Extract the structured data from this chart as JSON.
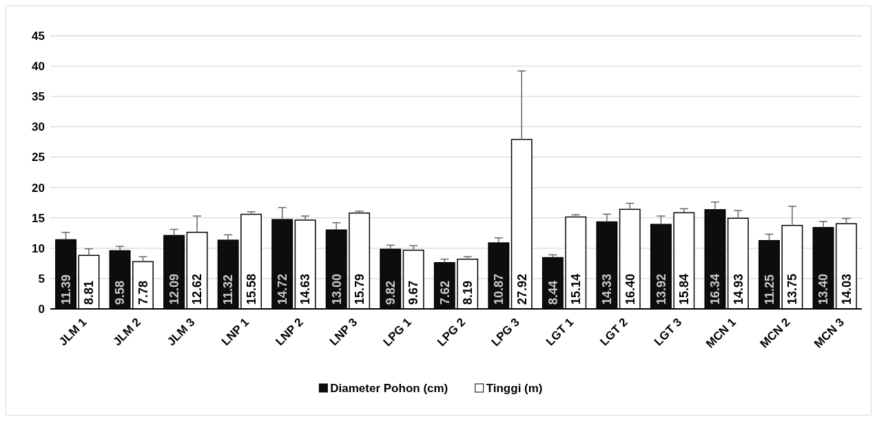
{
  "chart_data": {
    "type": "bar",
    "categories": [
      "JLM 1",
      "JLM 2",
      "JLM 3",
      "LNP 1",
      "LNP 2",
      "LNP 3",
      "LPG 1",
      "LPG 2",
      "LPG 3",
      "LGT 1",
      "LGT 2",
      "LGT 3",
      "MCN 1",
      "MCN 2",
      "MCN 3"
    ],
    "series": [
      {
        "name": "Diameter Pohon (cm)",
        "color": "#0d0d0d",
        "values": [
          11.39,
          9.58,
          12.09,
          11.32,
          14.72,
          13.0,
          9.82,
          7.62,
          10.87,
          8.44,
          14.33,
          13.92,
          16.34,
          11.25,
          13.4
        ],
        "value_labels": [
          "11.39",
          "9.58",
          "12.09",
          "11.32",
          "14.72",
          "13.00",
          "9.82",
          "7.62",
          "10.87",
          "8.44",
          "14.33",
          "13.92",
          "16.34",
          "11.25",
          "13.40"
        ],
        "errors": [
          [
            11.39,
            12.6
          ],
          [
            9.58,
            10.3
          ],
          [
            12.09,
            13.1
          ],
          [
            11.32,
            12.2
          ],
          [
            14.72,
            16.7
          ],
          [
            13.0,
            14.2
          ],
          [
            9.82,
            10.5
          ],
          [
            7.62,
            8.2
          ],
          [
            10.87,
            11.7
          ],
          [
            8.44,
            8.9
          ],
          [
            14.33,
            15.6
          ],
          [
            13.92,
            15.3
          ],
          [
            16.34,
            17.6
          ],
          [
            11.25,
            12.3
          ],
          [
            13.4,
            14.4
          ]
        ]
      },
      {
        "name": "Tinggi (m)",
        "color": "#ffffff",
        "values": [
          8.81,
          7.78,
          12.62,
          15.58,
          14.63,
          15.79,
          9.67,
          8.19,
          27.92,
          15.14,
          16.4,
          15.84,
          14.93,
          13.75,
          14.03
        ],
        "value_labels": [
          "8.81",
          "7.78",
          "12.62",
          "15.58",
          "14.63",
          "15.79",
          "9.67",
          "8.19",
          "27.92",
          "15.14",
          "16.40",
          "15.84",
          "14.93",
          "13.75",
          "14.03"
        ],
        "errors": [
          [
            8.81,
            9.9
          ],
          [
            7.78,
            8.6
          ],
          [
            12.62,
            15.3
          ],
          [
            15.58,
            16.0
          ],
          [
            14.63,
            15.3
          ],
          [
            15.79,
            16.1
          ],
          [
            9.67,
            10.4
          ],
          [
            8.19,
            8.6
          ],
          [
            27.92,
            39.2
          ],
          [
            15.14,
            15.5
          ],
          [
            16.4,
            17.4
          ],
          [
            15.84,
            16.5
          ],
          [
            14.93,
            16.2
          ],
          [
            13.75,
            16.9
          ],
          [
            14.03,
            14.9
          ]
        ]
      }
    ],
    "ylim": [
      0,
      45
    ],
    "yticks": [
      0,
      5,
      10,
      15,
      20,
      25,
      30,
      35,
      40,
      45
    ],
    "grid": "y",
    "legend": "bottom"
  }
}
